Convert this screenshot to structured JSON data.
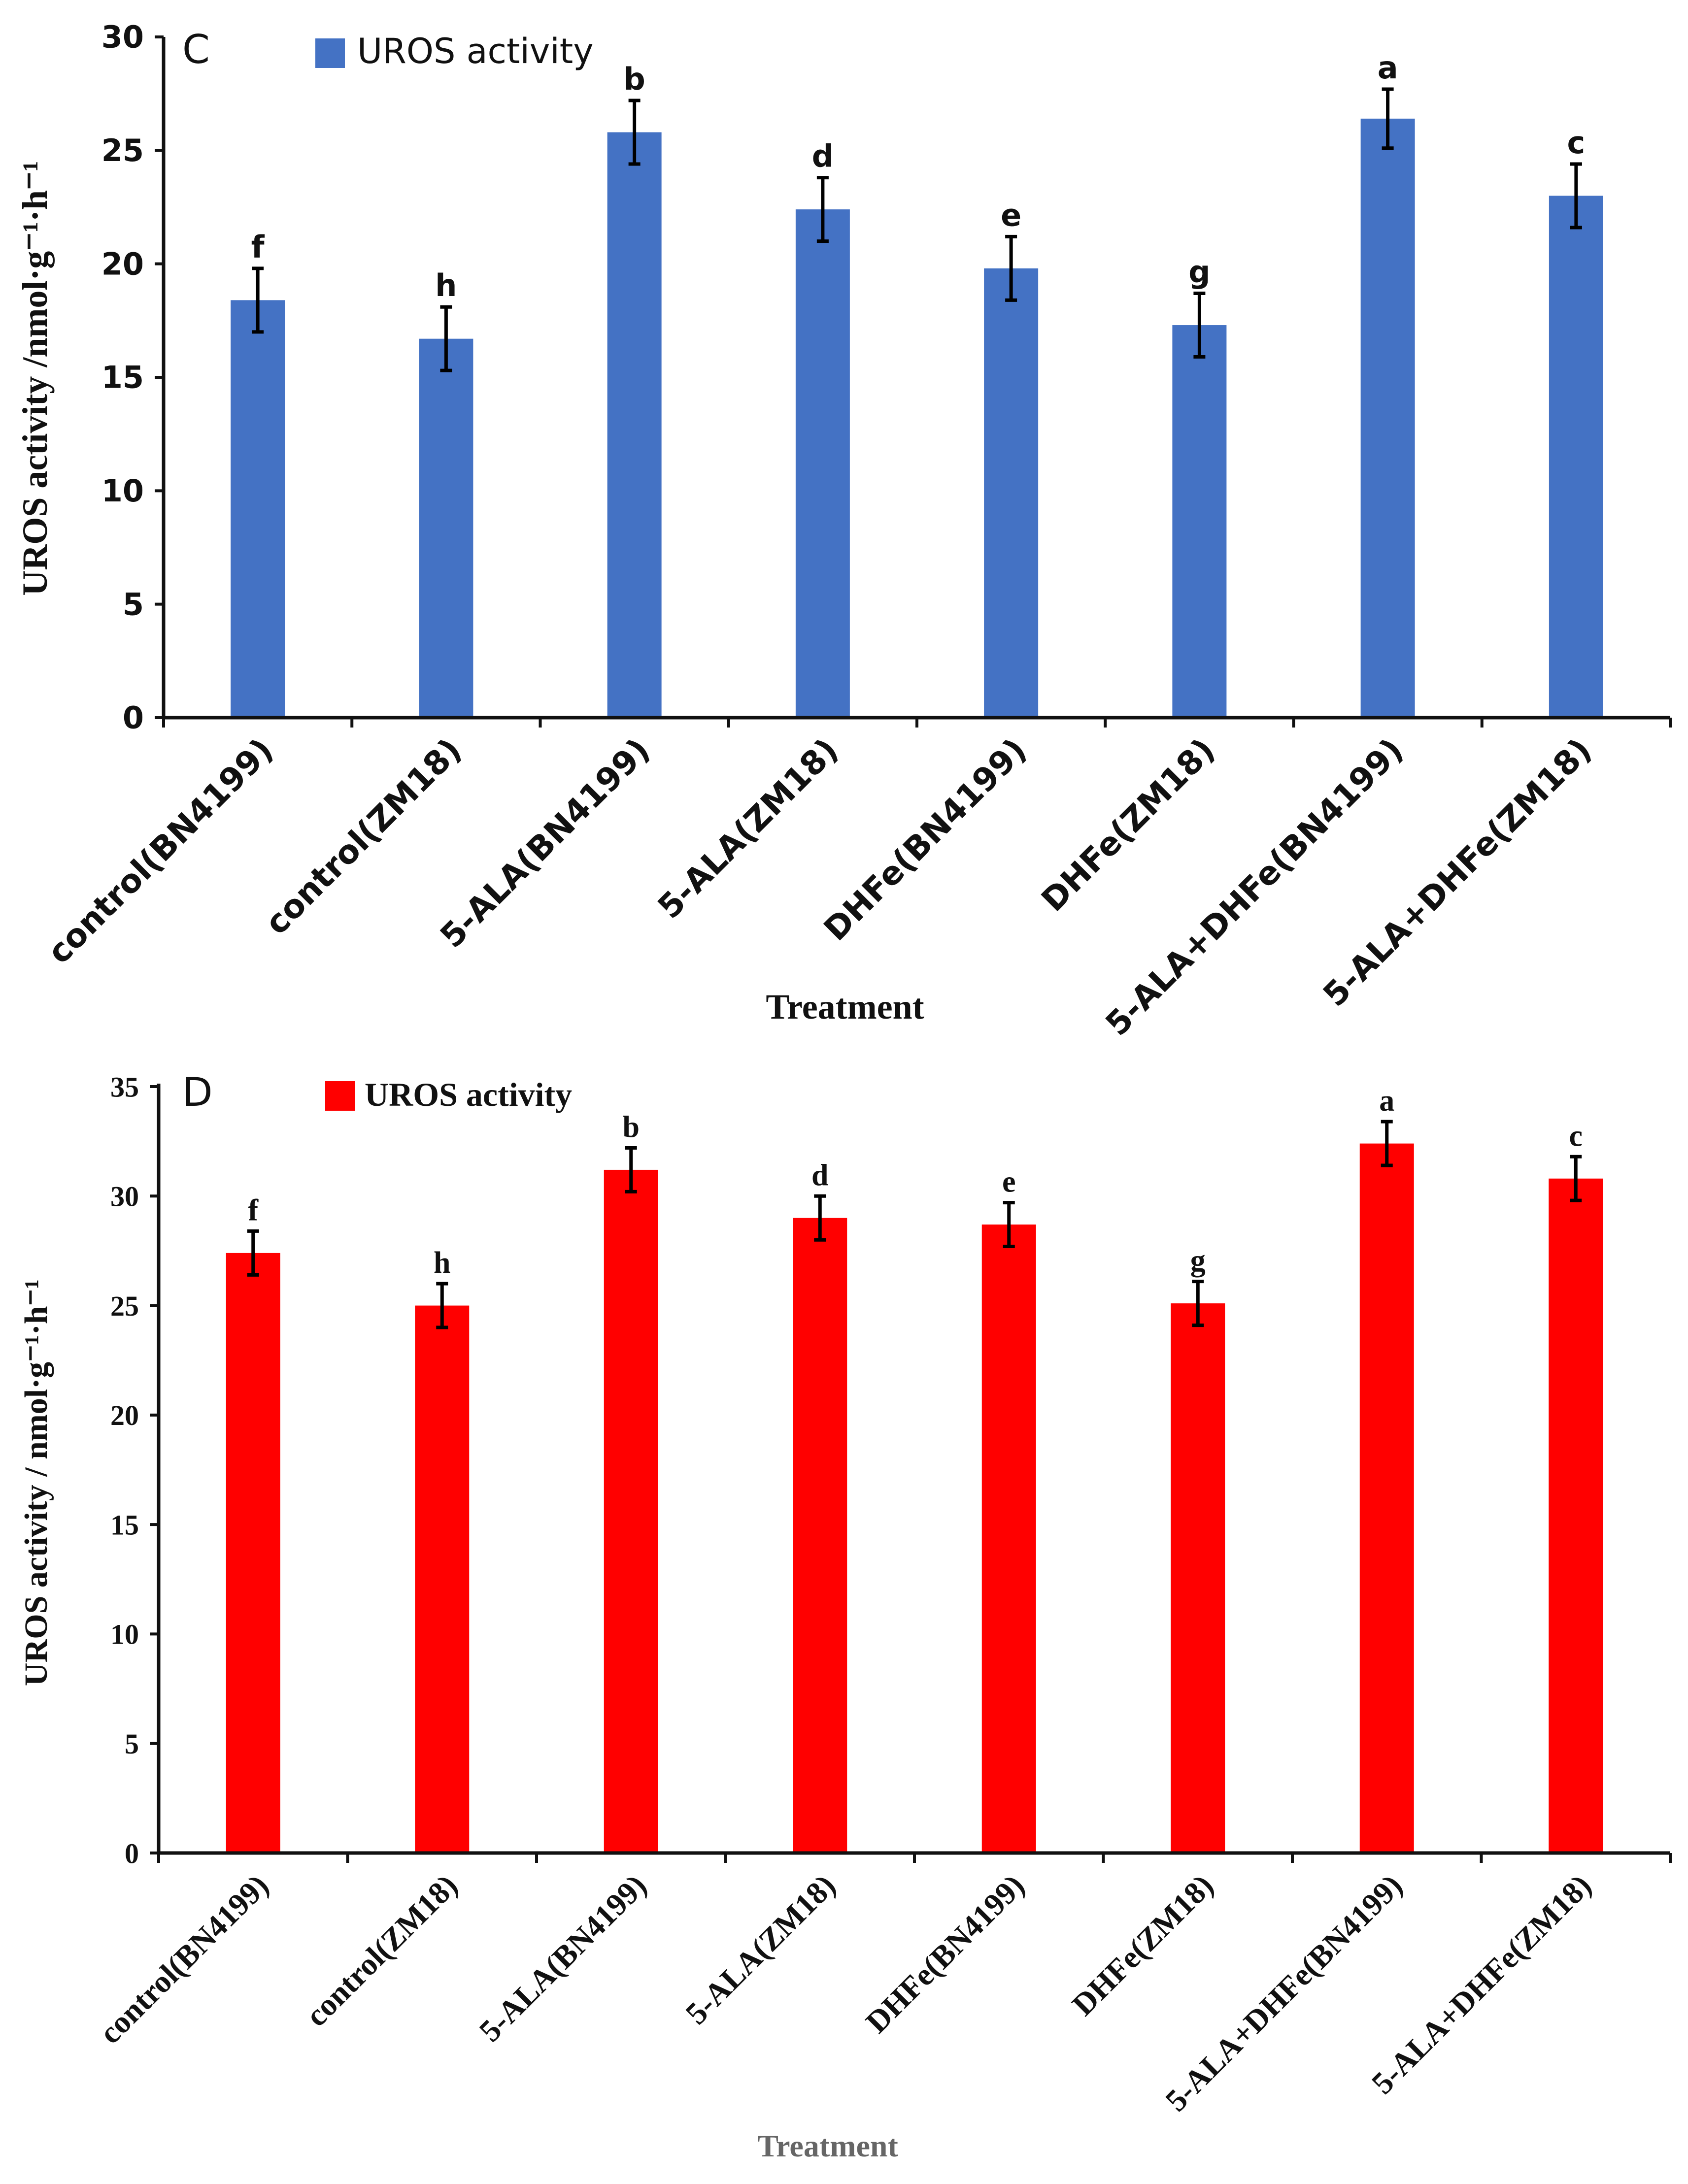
{
  "chart_data": [
    {
      "panel_label": "C",
      "type": "bar",
      "title": "",
      "legend": "UROS activity",
      "legend_position": "top-left",
      "bar_color": "#4472c4",
      "font_style": "sans",
      "xlabel": "Treatment",
      "ylabel": "UROS activity /nmol·g⁻¹·h⁻¹",
      "ylim": [
        0,
        30
      ],
      "yticks": [
        "0",
        "5",
        "10",
        "15",
        "20",
        "25",
        "30"
      ],
      "categories": [
        "control(BN4199)",
        "control(ZM18)",
        "5-ALA(BN4199)",
        "5-ALA(ZM18)",
        "DHFe(BN4199)",
        "DHFe(ZM18)",
        "5-ALA+DHFe(BN4199)",
        "5-ALA+DHFe(ZM18)"
      ],
      "values": [
        18.4,
        16.7,
        25.8,
        22.4,
        19.8,
        17.3,
        26.4,
        23.0
      ],
      "errors": [
        1.4,
        1.4,
        1.4,
        1.4,
        1.4,
        1.4,
        1.3,
        1.4
      ],
      "significance": [
        "f",
        "h",
        "b",
        "d",
        "e",
        "g",
        "a",
        "c"
      ]
    },
    {
      "panel_label": "D",
      "type": "bar",
      "title": "",
      "legend": "UROS activity",
      "legend_position": "top-left",
      "bar_color": "#ff0000",
      "font_style": "serif",
      "xlabel": "Treatment",
      "ylabel": "UROS activity / nmol·g⁻¹·h⁻¹",
      "ylim": [
        0,
        35
      ],
      "yticks": [
        "0",
        "5",
        "10",
        "15",
        "20",
        "25",
        "30",
        "35"
      ],
      "categories": [
        "control(BN4199)",
        "control(ZM18)",
        "5-ALA(BN4199)",
        "5-ALA(ZM18)",
        "DHFe(BN4199)",
        "DHFe(ZM18)",
        "5-ALA+DHFe(BN4199)",
        "5-ALA+DHFe(ZM18)"
      ],
      "values": [
        27.4,
        25.0,
        31.2,
        29.0,
        28.7,
        25.1,
        32.4,
        30.8
      ],
      "errors": [
        1.0,
        1.0,
        1.0,
        1.0,
        1.0,
        1.0,
        1.0,
        1.0
      ],
      "significance": [
        "f",
        "h",
        "b",
        "d",
        "e",
        "g",
        "a",
        "c"
      ]
    }
  ]
}
